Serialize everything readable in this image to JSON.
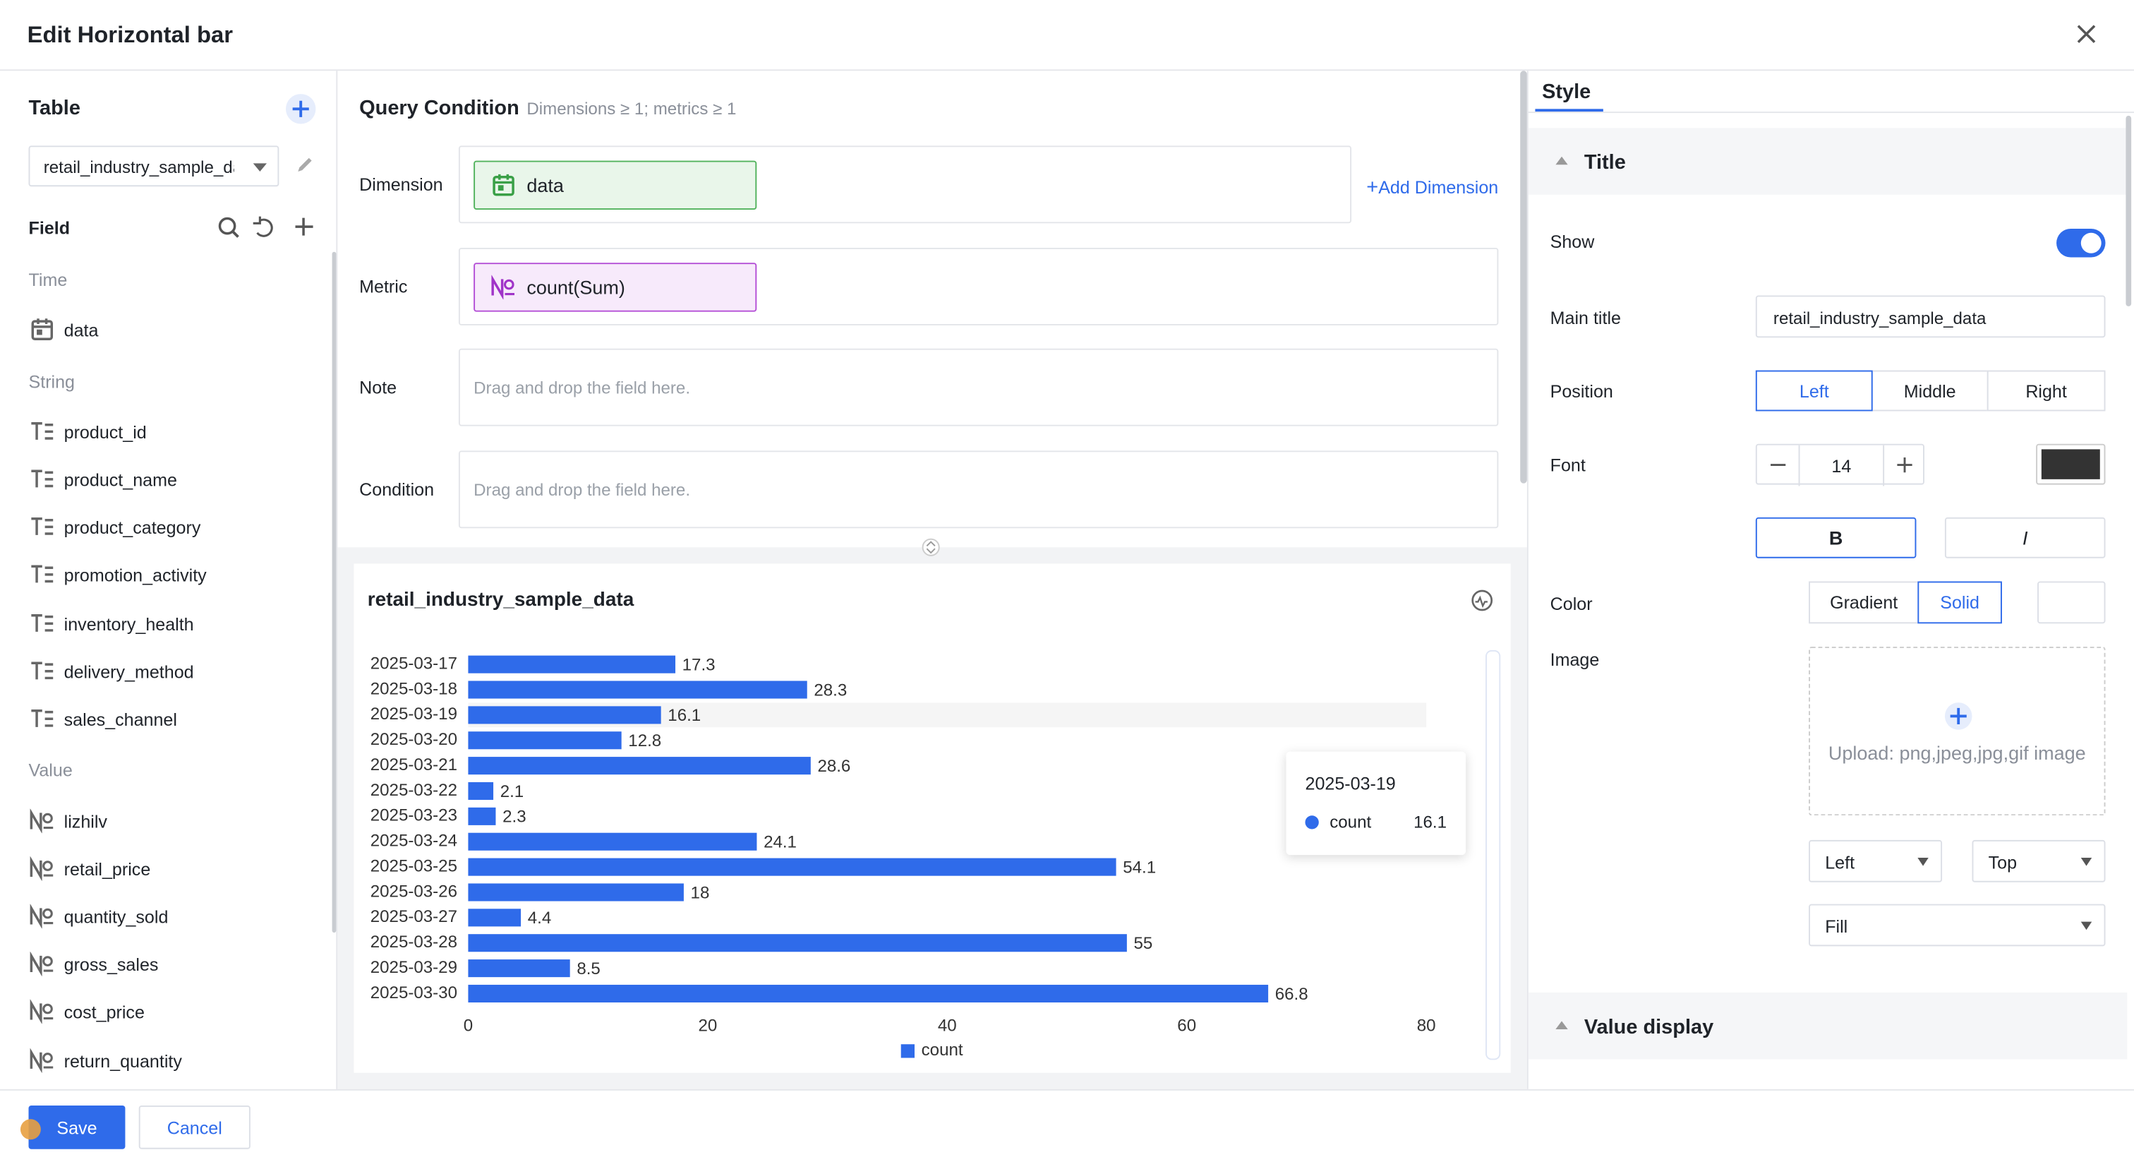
{
  "header": {
    "title": "Edit Horizontal bar"
  },
  "table_panel": {
    "title": "Table",
    "selected_table": "retail_industry_sample_data",
    "field_title": "Field",
    "groups": [
      {
        "name": "Time",
        "fields": [
          "data"
        ]
      },
      {
        "name": "String",
        "fields": [
          "product_id",
          "product_name",
          "product_category",
          "promotion_activity",
          "inventory_health",
          "delivery_method",
          "sales_channel"
        ]
      },
      {
        "name": "Value",
        "fields": [
          "lizhilv",
          "retail_price",
          "quantity_sold",
          "gross_sales",
          "cost_price",
          "return_quantity"
        ]
      }
    ]
  },
  "query": {
    "title": "Query Condition",
    "hint": "Dimensions ≥ 1; metrics ≥ 1",
    "add_dimension": "Add Dimension",
    "rows": [
      {
        "label": "Dimension",
        "chip": "data"
      },
      {
        "label": "Metric",
        "chip": "count(Sum)"
      },
      {
        "label": "Note",
        "placeholder": "Drag and drop the field here."
      },
      {
        "label": "Condition",
        "placeholder": "Drag and drop the field here."
      }
    ]
  },
  "chart_data": {
    "type": "bar",
    "orientation": "horizontal",
    "title": "retail_industry_sample_data",
    "categories": [
      "2025-03-17",
      "2025-03-18",
      "2025-03-19",
      "2025-03-20",
      "2025-03-21",
      "2025-03-22",
      "2025-03-23",
      "2025-03-24",
      "2025-03-25",
      "2025-03-26",
      "2025-03-27",
      "2025-03-28",
      "2025-03-29",
      "2025-03-30"
    ],
    "series": [
      {
        "name": "count",
        "color": "#2f6bea",
        "values": [
          17.3,
          28.3,
          16.1,
          12.8,
          28.6,
          2.1,
          2.3,
          24.1,
          54.1,
          18,
          4.4,
          55,
          8.5,
          66.8
        ]
      }
    ],
    "xlim": [
      0,
      80
    ],
    "xticks": [
      0,
      20,
      40,
      60,
      80
    ],
    "grid": false,
    "legend": "bottom"
  },
  "style_panel": {
    "tab": "Style",
    "section": "Title",
    "show_label": "Show",
    "main_title_label": "Main title",
    "main_title": "retail_industry_sample_data",
    "position_label": "Position",
    "positions": [
      "Left",
      "Middle",
      "Right"
    ],
    "font_label": "Font",
    "font_size": 14,
    "bold": "B",
    "italic": "I",
    "color_label": "Color",
    "color_modes": [
      "Gradient",
      "Solid"
    ],
    "image_label": "Image",
    "upload": "Upload: png,jpeg,jpg,gif image",
    "image_h": "Left",
    "image_v": "Top",
    "image_fit": "Fill",
    "next_section": "Value display"
  },
  "footer": {
    "save": "Save",
    "cancel": "Cancel"
  }
}
